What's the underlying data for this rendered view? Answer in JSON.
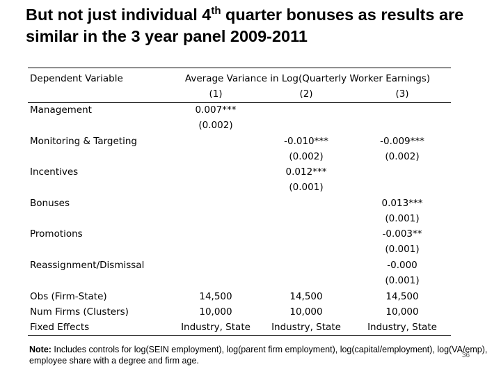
{
  "title": {
    "before": "But not just individual 4",
    "sup": "th",
    "after": " quarter bonuses as results are similar in the 3 year panel 2009-2011"
  },
  "table": {
    "stub_header": "Dependent Variable",
    "group_header": "Average Variance in Log(Quarterly Worker Earnings)",
    "columns": [
      "(1)",
      "(2)",
      "(3)"
    ],
    "rows": [
      {
        "label": "Management",
        "cells": [
          {
            "coef": "0.007***",
            "se": "(0.002)"
          },
          null,
          null
        ]
      },
      {
        "label": "Monitoring & Targeting",
        "cells": [
          null,
          {
            "coef": "-0.010***",
            "se": "(0.002)"
          },
          {
            "coef": "-0.009***",
            "se": "(0.002)"
          }
        ]
      },
      {
        "label": "Incentives",
        "cells": [
          null,
          {
            "coef": "0.012***",
            "se": "(0.001)"
          },
          null
        ]
      },
      {
        "label": "Bonuses",
        "cells": [
          null,
          null,
          {
            "coef": "0.013***",
            "se": "(0.001)"
          }
        ]
      },
      {
        "label": "Promotions",
        "cells": [
          null,
          null,
          {
            "coef": "-0.003**",
            "se": "(0.001)"
          }
        ]
      },
      {
        "label": "Reassignment/Dismissal",
        "cells": [
          null,
          null,
          {
            "coef": "-0.000",
            "se": "(0.001)"
          }
        ]
      }
    ],
    "stats": [
      {
        "label": "Obs (Firm-State)",
        "cells": [
          "14,500",
          "14,500",
          "14,500"
        ]
      },
      {
        "label": "Num Firms (Clusters)",
        "cells": [
          "10,000",
          "10,000",
          "10,000"
        ]
      },
      {
        "label": "Fixed Effects",
        "cells": [
          "Industry, State",
          "Industry, State",
          "Industry, State"
        ]
      }
    ]
  },
  "note": {
    "label": "Note:",
    "text": " Includes controls for log(SEIN employment), log(parent firm employment), log(capital/employment), log(VA/emp), employee share with a degree and firm age."
  },
  "page_number": "36"
}
